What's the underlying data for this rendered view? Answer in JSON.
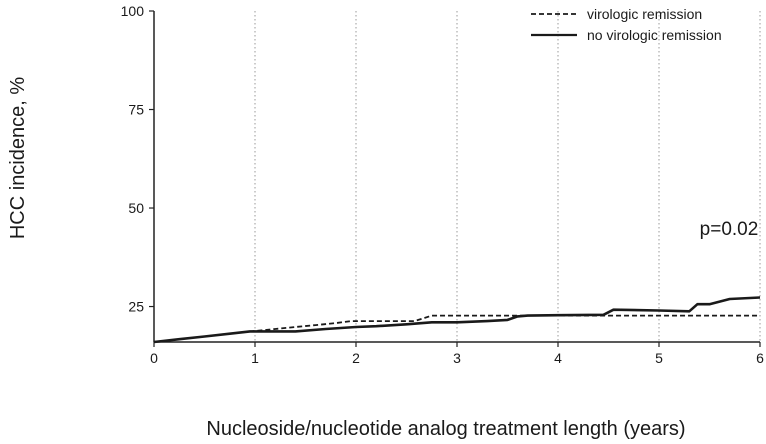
{
  "chart_data": {
    "type": "line",
    "title": "",
    "xlabel": "Nucleoside/nucleotide analog treatment length (years)",
    "ylabel": "HCC incidence, %",
    "xlim": [
      0,
      6
    ],
    "ylim": [
      16,
      100
    ],
    "x_ticks": [
      0,
      1,
      2,
      3,
      4,
      5,
      6
    ],
    "y_ticks": [
      25,
      50,
      75,
      100
    ],
    "grid": "vertical dotted lines at integer x values",
    "legend": "top-right",
    "annotation": "p=0.02",
    "series": [
      {
        "name": "virologic remission",
        "style": "dashed",
        "color": "#1a1a1a",
        "points": [
          [
            0,
            16.0
          ],
          [
            0.25,
            16.7
          ],
          [
            0.5,
            17.4
          ],
          [
            0.75,
            18.1
          ],
          [
            1.0,
            18.8
          ],
          [
            1.2,
            19.3
          ],
          [
            1.4,
            19.8
          ],
          [
            1.6,
            20.3
          ],
          [
            1.8,
            20.8
          ],
          [
            1.95,
            21.3
          ],
          [
            2.2,
            21.3
          ],
          [
            2.45,
            21.3
          ],
          [
            2.58,
            21.3
          ],
          [
            2.75,
            22.7
          ],
          [
            3.0,
            22.7
          ],
          [
            3.3,
            22.7
          ],
          [
            3.65,
            22.7
          ],
          [
            4.0,
            22.7
          ],
          [
            4.5,
            22.7
          ],
          [
            5.0,
            22.7
          ],
          [
            5.5,
            22.7
          ],
          [
            6.0,
            22.7
          ]
        ]
      },
      {
        "name": "no virologic remission",
        "style": "solid",
        "color": "#1a1a1a",
        "points": [
          [
            0,
            16.0
          ],
          [
            0.25,
            16.7
          ],
          [
            0.5,
            17.4
          ],
          [
            0.75,
            18.1
          ],
          [
            0.95,
            18.7
          ],
          [
            1.4,
            18.7
          ],
          [
            1.7,
            19.3
          ],
          [
            2.0,
            19.8
          ],
          [
            2.2,
            20.0
          ],
          [
            2.5,
            20.5
          ],
          [
            2.75,
            21.0
          ],
          [
            3.0,
            21.0
          ],
          [
            3.3,
            21.3
          ],
          [
            3.5,
            21.6
          ],
          [
            3.6,
            22.5
          ],
          [
            3.7,
            22.7
          ],
          [
            4.0,
            22.8
          ],
          [
            4.45,
            22.9
          ],
          [
            4.55,
            24.2
          ],
          [
            5.0,
            24.0
          ],
          [
            5.3,
            23.8
          ],
          [
            5.38,
            25.6
          ],
          [
            5.5,
            25.6
          ],
          [
            5.7,
            26.9
          ],
          [
            6.0,
            27.3
          ]
        ]
      }
    ]
  }
}
